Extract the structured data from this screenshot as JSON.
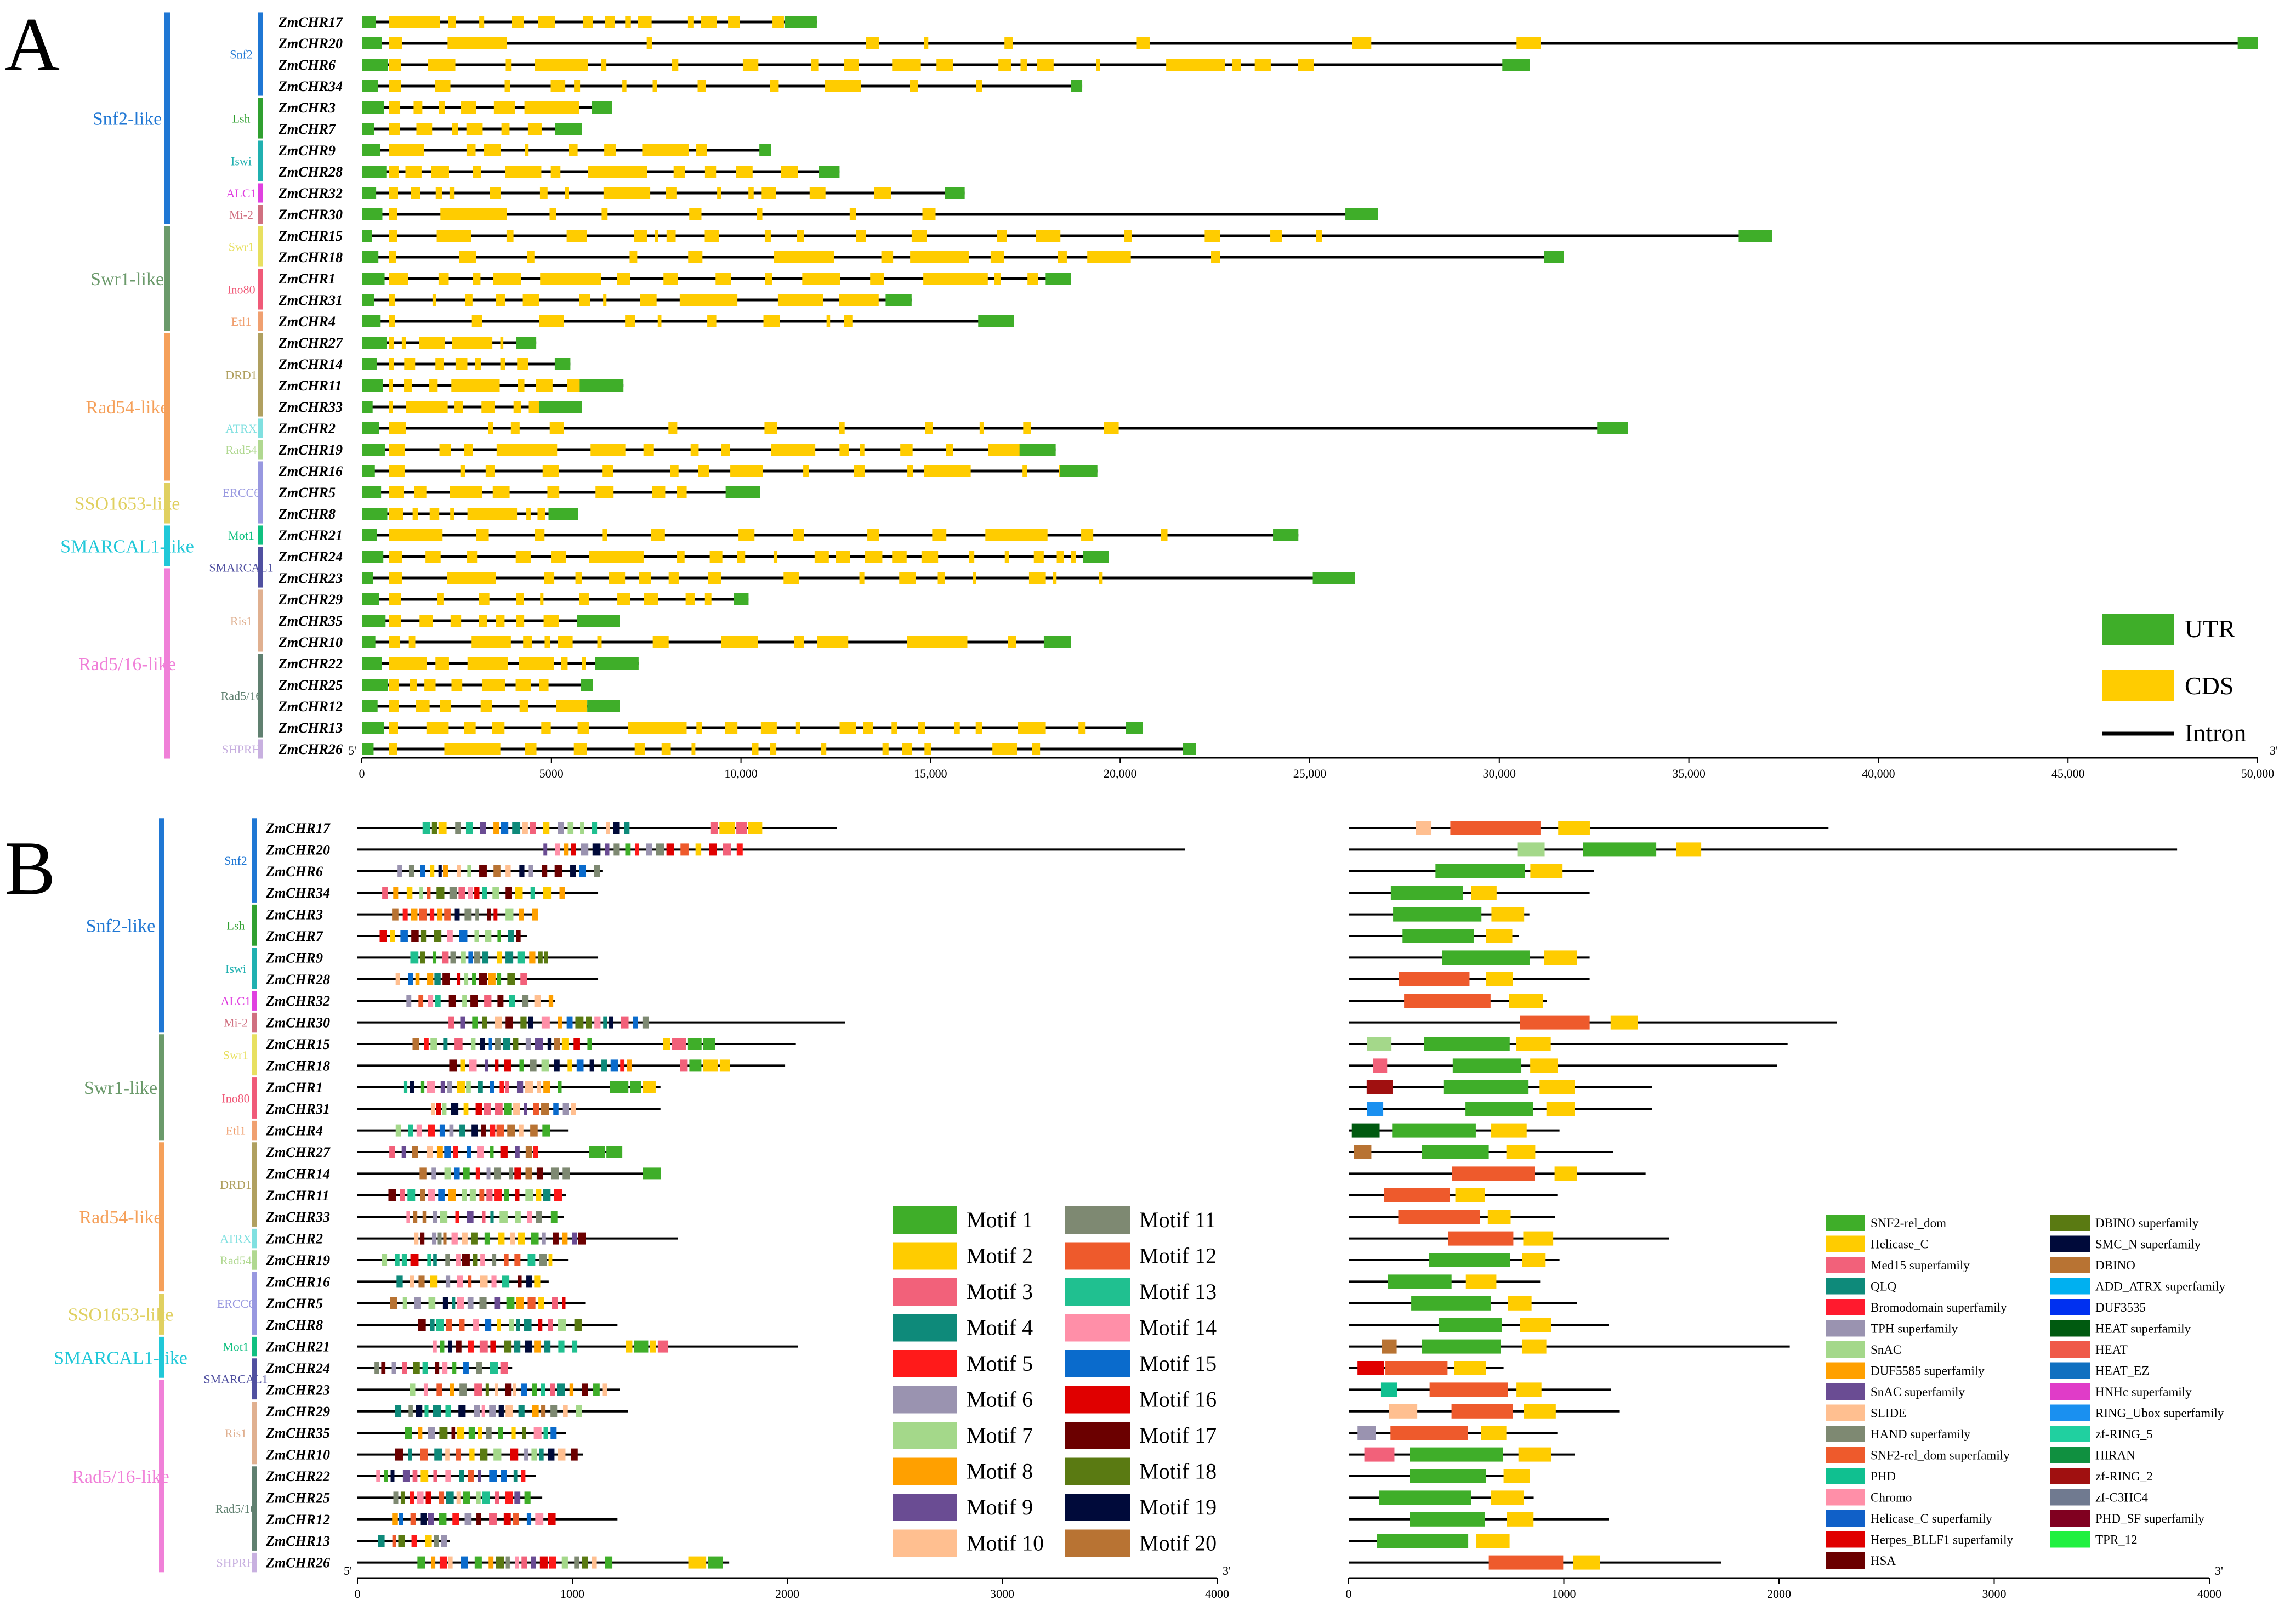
{
  "chart_data": [
    {
      "panel": "A",
      "type": "gene-structure",
      "xlim": [
        0,
        50000
      ],
      "xticks": [
        0,
        5000,
        10000,
        15000,
        20000,
        25000,
        30000,
        35000,
        40000,
        45000,
        50000
      ],
      "xticklabels": [
        "0",
        "5000",
        "10,000",
        "15,000",
        "20,000",
        "25,000",
        "30,000",
        "35,000",
        "40,000",
        "45,000",
        "50,000"
      ],
      "end_labels": [
        "5'",
        "3'"
      ],
      "legend": [
        {
          "label": "UTR",
          "color": "#3fae29"
        },
        {
          "label": "CDS",
          "color": "#ffcc00"
        },
        {
          "label": "Intron",
          "color": "#000000"
        }
      ],
      "genes": [
        {
          "name": "ZmCHR17",
          "length": 12000
        },
        {
          "name": "ZmCHR20",
          "length": 50000
        },
        {
          "name": "ZmCHR6",
          "length": 30800
        },
        {
          "name": "ZmCHR34",
          "length": 19000
        },
        {
          "name": "ZmCHR3",
          "length": 6600
        },
        {
          "name": "ZmCHR7",
          "length": 5800
        },
        {
          "name": "ZmCHR9",
          "length": 10800
        },
        {
          "name": "ZmCHR28",
          "length": 12600
        },
        {
          "name": "ZmCHR32",
          "length": 15900
        },
        {
          "name": "ZmCHR30",
          "length": 26800
        },
        {
          "name": "ZmCHR15",
          "length": 37200
        },
        {
          "name": "ZmCHR18",
          "length": 31700
        },
        {
          "name": "ZmCHR1",
          "length": 18700
        },
        {
          "name": "ZmCHR31",
          "length": 14500
        },
        {
          "name": "ZmCHR4",
          "length": 17200
        },
        {
          "name": "ZmCHR27",
          "length": 4600
        },
        {
          "name": "ZmCHR14",
          "length": 5500
        },
        {
          "name": "ZmCHR11",
          "length": 6900
        },
        {
          "name": "ZmCHR33",
          "length": 5800
        },
        {
          "name": "ZmCHR2",
          "length": 33400
        },
        {
          "name": "ZmCHR19",
          "length": 18300
        },
        {
          "name": "ZmCHR16",
          "length": 19400
        },
        {
          "name": "ZmCHR5",
          "length": 10500
        },
        {
          "name": "ZmCHR8",
          "length": 5700
        },
        {
          "name": "ZmCHR21",
          "length": 24700
        },
        {
          "name": "ZmCHR24",
          "length": 19700
        },
        {
          "name": "ZmCHR23",
          "length": 26200
        },
        {
          "name": "ZmCHR29",
          "length": 10200
        },
        {
          "name": "ZmCHR35",
          "length": 6800
        },
        {
          "name": "ZmCHR10",
          "length": 18700
        },
        {
          "name": "ZmCHR22",
          "length": 7300
        },
        {
          "name": "ZmCHR25",
          "length": 6100
        },
        {
          "name": "ZmCHR12",
          "length": 6800
        },
        {
          "name": "ZmCHR13",
          "length": 20600
        },
        {
          "name": "ZmCHR26",
          "length": 22000
        }
      ]
    },
    {
      "panel": "B-motifs",
      "type": "motif-map",
      "xlim": [
        0,
        4000
      ],
      "xticks": [
        0,
        1000,
        2000,
        3000,
        4000
      ],
      "end_labels": [
        "5'",
        "3'"
      ],
      "protein_lengths": [
        2230,
        3850,
        1140,
        1120,
        840,
        790,
        1120,
        1120,
        920,
        2270,
        2040,
        1990,
        1410,
        1410,
        980,
        1230,
        1380,
        970,
        960,
        1490,
        980,
        890,
        1060,
        1210,
        2050,
        720,
        1220,
        1260,
        970,
        1050,
        830,
        860,
        1210,
        430,
        1730
      ],
      "legend": [
        {
          "label": "Motif 1",
          "color": "#3fae29"
        },
        {
          "label": "Motif 2",
          "color": "#ffcc00"
        },
        {
          "label": "Motif 3",
          "color": "#f2617a"
        },
        {
          "label": "Motif 4",
          "color": "#0e8a7a"
        },
        {
          "label": "Motif 5",
          "color": "#ff1a1a"
        },
        {
          "label": "Motif 6",
          "color": "#9a93b0"
        },
        {
          "label": "Motif 7",
          "color": "#a4d88a"
        },
        {
          "label": "Motif 8",
          "color": "#ffa000"
        },
        {
          "label": "Motif 9",
          "color": "#6a4c93"
        },
        {
          "label": "Motif 10",
          "color": "#ffbf90"
        },
        {
          "label": "Motif 11",
          "color": "#7e8972"
        },
        {
          "label": "Motif 12",
          "color": "#ee5a2c"
        },
        {
          "label": "Motif 13",
          "color": "#20c090"
        },
        {
          "label": "Motif 14",
          "color": "#ff8fa8"
        },
        {
          "label": "Motif 15",
          "color": "#0a6bcc"
        },
        {
          "label": "Motif 16",
          "color": "#e00000"
        },
        {
          "label": "Motif 17",
          "color": "#6b0000"
        },
        {
          "label": "Motif 18",
          "color": "#5a7a12"
        },
        {
          "label": "Motif 19",
          "color": "#000a3a"
        },
        {
          "label": "Motif 20",
          "color": "#b87333"
        }
      ]
    },
    {
      "panel": "B-domains",
      "type": "domain-map",
      "xlim": [
        0,
        4000
      ],
      "xticks": [
        0,
        1000,
        2000,
        3000,
        4000
      ],
      "end_labels": [
        "3'"
      ],
      "legend": [
        {
          "label": "SNF2-rel_dom",
          "color": "#3fae29"
        },
        {
          "label": "Helicase_C",
          "color": "#ffcc00"
        },
        {
          "label": "Med15 superfamily",
          "color": "#f2617a"
        },
        {
          "label": "QLQ",
          "color": "#0e8a7a"
        },
        {
          "label": "Bromodomain superfamily",
          "color": "#ff1a2e"
        },
        {
          "label": "TPH superfamily",
          "color": "#9a93b0"
        },
        {
          "label": "SnAC",
          "color": "#a4d88a"
        },
        {
          "label": "DUF5585 superfamily",
          "color": "#ffa000"
        },
        {
          "label": "SnAC superfamily",
          "color": "#6a4c93"
        },
        {
          "label": "SLIDE",
          "color": "#ffbf90"
        },
        {
          "label": "HAND superfamily",
          "color": "#7e8972"
        },
        {
          "label": "SNF2-rel_dom superfamily",
          "color": "#ee5a2c"
        },
        {
          "label": "PHD",
          "color": "#10c090"
        },
        {
          "label": "Chromo",
          "color": "#ff8fa8"
        },
        {
          "label": "Helicase_C superfamily",
          "color": "#1060c8"
        },
        {
          "label": "Herpes_BLLF1 superfamily",
          "color": "#e00000"
        },
        {
          "label": "HSA",
          "color": "#6b0000"
        },
        {
          "label": "DBINO superfamily",
          "color": "#5a7a12"
        },
        {
          "label": "SMC_N superfamily",
          "color": "#000a3a"
        },
        {
          "label": "DBINO",
          "color": "#b87333"
        },
        {
          "label": "ADD_ATRX superfamily",
          "color": "#00b0f0"
        },
        {
          "label": "DUF3535",
          "color": "#0030f0"
        },
        {
          "label": "HEAT superfamily",
          "color": "#005a10"
        },
        {
          "label": "HEAT",
          "color": "#ef5a48"
        },
        {
          "label": "HEAT_EZ",
          "color": "#1070c0"
        },
        {
          "label": "HNHc superfamily",
          "color": "#e03cc8"
        },
        {
          "label": "RING_Ubox superfamily",
          "color": "#1a90f0"
        },
        {
          "label": "zf-RING_5",
          "color": "#20d0a0"
        },
        {
          "label": "HIRAN",
          "color": "#109040"
        },
        {
          "label": "zf-RING_2",
          "color": "#a01010"
        },
        {
          "label": "zf-C3HC4",
          "color": "#707a90"
        },
        {
          "label": "PHD_SF superfamily",
          "color": "#800020"
        },
        {
          "label": "TPR_12",
          "color": "#20f040"
        }
      ]
    }
  ],
  "panel_labels": [
    "A",
    "B"
  ],
  "families": [
    {
      "label": "Snf2-like",
      "color": "#1f77d4",
      "start": 0,
      "end": 9
    },
    {
      "label": "Swr1-like",
      "color": "#6b9a6b",
      "start": 10,
      "end": 14
    },
    {
      "label": "Rad54-like",
      "color": "#f5a05a",
      "start": 15,
      "end": 21
    },
    {
      "label": "SSO1653-like",
      "color": "#e0d060",
      "start": 22,
      "end": 23
    },
    {
      "label": "SMARCAL1-like",
      "color": "#20c8d8",
      "start": 24,
      "end": 25
    },
    {
      "label": "Rad5/16-like",
      "color": "#f080d8",
      "start": 26,
      "end": 34
    }
  ],
  "subfamilies": [
    {
      "label": "Snf2",
      "color": "#1f77d4",
      "start": 0,
      "end": 3
    },
    {
      "label": "Lsh",
      "color": "#30a030",
      "start": 4,
      "end": 5
    },
    {
      "label": "Iswi",
      "color": "#20b0b0",
      "start": 6,
      "end": 7
    },
    {
      "label": "ALC1",
      "color": "#e040e0",
      "start": 8,
      "end": 8
    },
    {
      "label": "Mi-2",
      "color": "#d07080",
      "start": 9,
      "end": 9
    },
    {
      "label": "Swr1",
      "color": "#e8e060",
      "start": 10,
      "end": 11
    },
    {
      "label": "Ino80",
      "color": "#f05a78",
      "start": 12,
      "end": 13
    },
    {
      "label": "Etl1",
      "color": "#f0a070",
      "start": 14,
      "end": 14
    },
    {
      "label": "DRD1",
      "color": "#b0a060",
      "start": 15,
      "end": 18
    },
    {
      "label": "ATRX",
      "color": "#80e0e0",
      "start": 19,
      "end": 19
    },
    {
      "label": "Rad54",
      "color": "#b0d890",
      "start": 20,
      "end": 20
    },
    {
      "label": "ERCC6",
      "color": "#9898e0",
      "start": 21,
      "end": 23
    },
    {
      "label": "Mot1",
      "color": "#10c080",
      "start": 24,
      "end": 24
    },
    {
      "label": "SMARCAL1",
      "color": "#5050a0",
      "start": 25,
      "end": 26
    },
    {
      "label": "Ris1",
      "color": "#e0b090",
      "start": 27,
      "end": 29
    },
    {
      "label": "Rad5/16",
      "color": "#608070",
      "start": 30,
      "end": 33
    },
    {
      "label": "SHPRH",
      "color": "#c8b0e0",
      "start": 34,
      "end": 34
    }
  ]
}
